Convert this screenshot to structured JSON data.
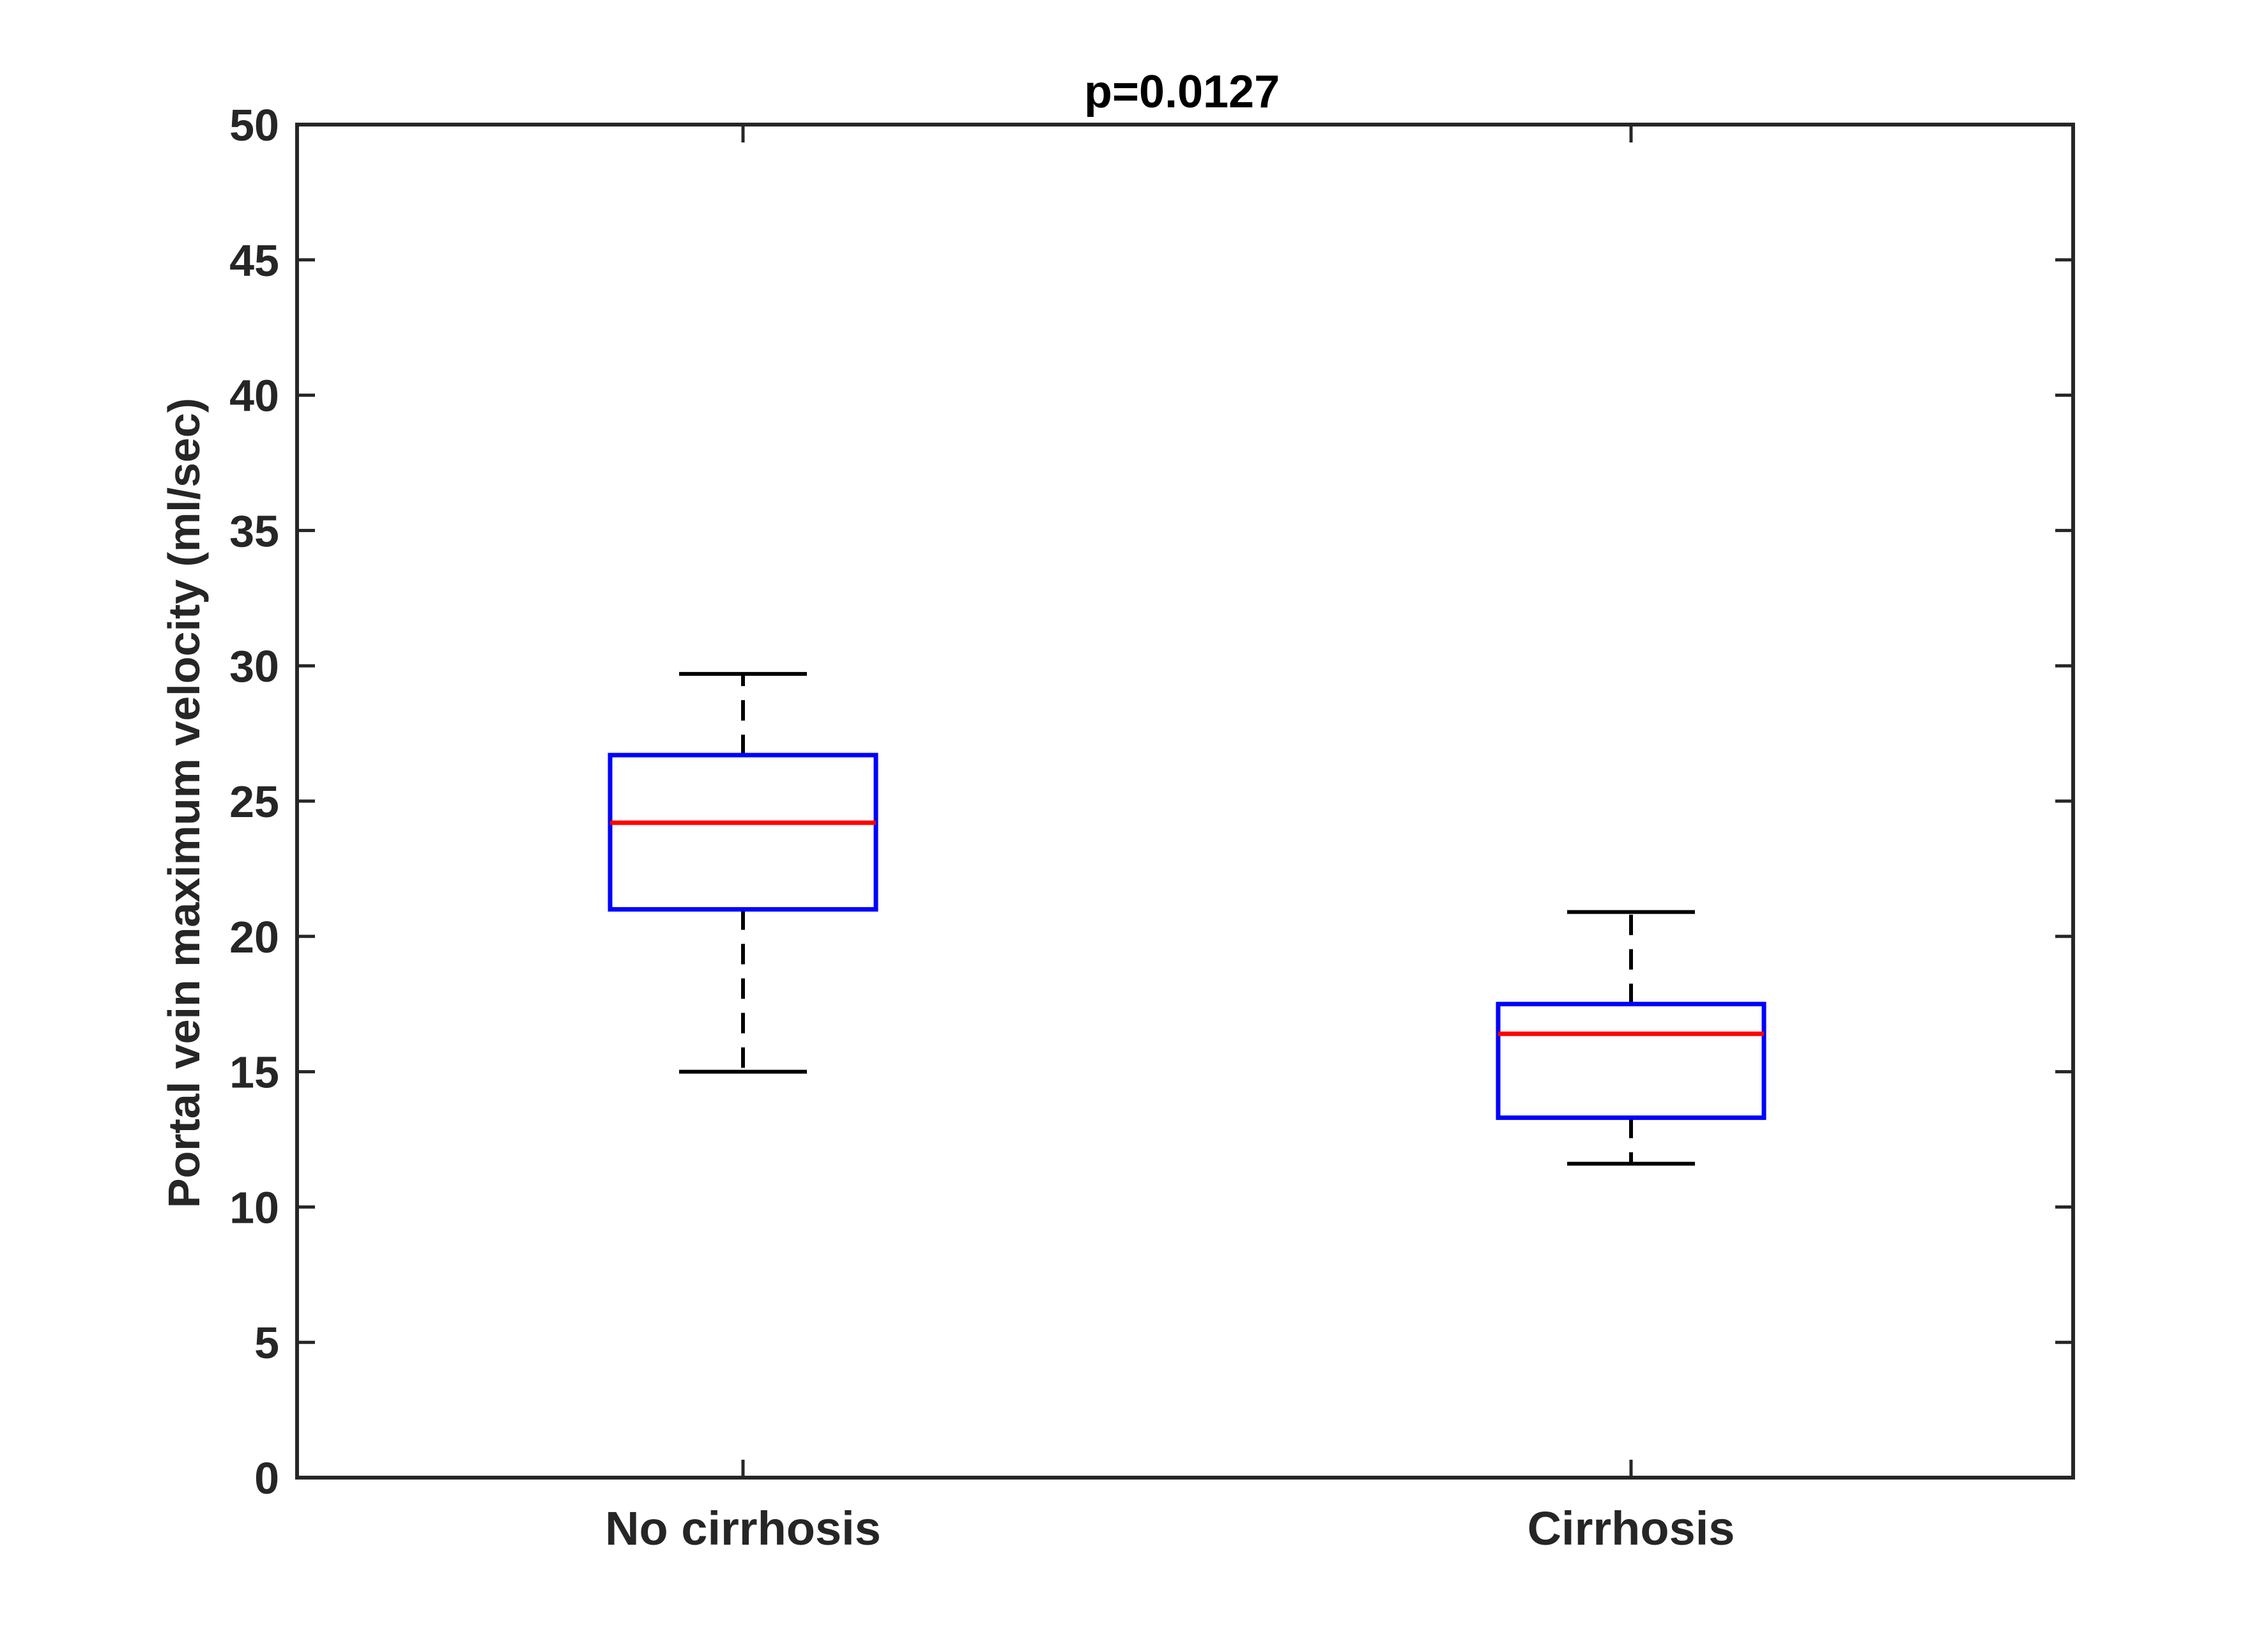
{
  "chart_data": {
    "type": "boxplot",
    "title": "p=0.0127",
    "xlabel": "",
    "ylabel": "Portal vein maximum velocity (ml/sec)",
    "ylim": [
      0,
      50
    ],
    "yticks": [
      0,
      5,
      10,
      15,
      20,
      25,
      30,
      35,
      40,
      45,
      50
    ],
    "categories": [
      "No cirrhosis",
      "Cirrhosis"
    ],
    "boxes": [
      {
        "min": 15.0,
        "q1": 21.0,
        "median": 24.2,
        "q3": 26.7,
        "max": 29.7
      },
      {
        "min": 11.6,
        "q1": 13.3,
        "median": 16.4,
        "q3": 17.5,
        "max": 20.9
      }
    ],
    "grid": false,
    "colors": {
      "box": "#0000ff",
      "median": "#ff0000",
      "whisker": "#000000",
      "axis": "#262626"
    }
  }
}
